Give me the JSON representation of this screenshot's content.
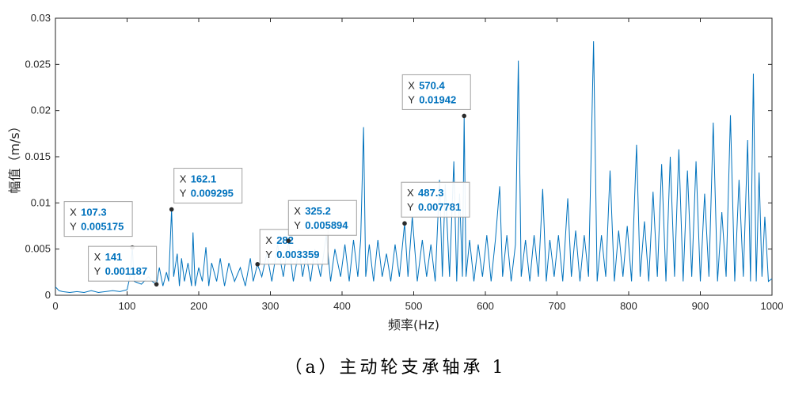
{
  "caption": "（a）主动轮支承轴承 1",
  "chart_data": {
    "type": "line",
    "xlabel": "频率(Hz)",
    "ylabel": "幅值（m/s）",
    "xlim": [
      0,
      1000
    ],
    "ylim": [
      0,
      0.03
    ],
    "xticks": [
      0,
      100,
      200,
      300,
      400,
      500,
      600,
      700,
      800,
      900,
      1000
    ],
    "yticks": [
      0,
      0.005,
      0.01,
      0.015,
      0.02,
      0.025,
      0.03
    ],
    "ytick_labels": [
      "0",
      "0.005",
      "0.01",
      "0.015",
      "0.02",
      "0.025",
      "0.03"
    ],
    "grid": false,
    "line_color": "#0072bd",
    "series": [
      {
        "x": [
          0,
          5,
          10,
          20,
          30,
          40,
          50,
          60,
          70,
          80,
          90,
          100,
          104,
          107.3,
          110,
          120,
          130,
          135,
          141,
          145,
          150,
          155,
          158,
          162.1,
          165,
          170,
          173,
          176,
          180,
          185,
          190,
          192,
          195,
          200,
          205,
          210,
          214,
          218,
          225,
          230,
          236,
          242,
          250,
          258,
          265,
          272,
          276,
          282,
          288,
          295,
          302,
          310,
          318,
          325.2,
          332,
          340,
          345,
          350,
          356,
          362,
          370,
          378,
          384,
          390,
          398,
          404,
          410,
          416,
          422,
          426,
          430,
          433,
          438,
          444,
          450,
          456,
          462,
          468,
          474,
          480,
          487.3,
          492,
          498,
          505,
          512,
          518,
          524,
          530,
          536,
          540,
          544,
          550,
          556,
          560,
          564,
          568,
          570.4,
          573,
          578,
          584,
          590,
          596,
          602,
          608,
          614,
          620,
          624,
          630,
          636,
          642,
          646,
          650,
          656,
          662,
          668,
          674,
          680,
          685,
          690,
          696,
          702,
          708,
          715,
          720,
          726,
          732,
          738,
          744,
          751,
          756,
          762,
          768,
          774,
          780,
          786,
          792,
          798,
          804,
          811,
          816,
          822,
          828,
          834,
          840,
          846,
          852,
          858,
          864,
          870,
          876,
          882,
          888,
          894,
          900,
          906,
          912,
          918,
          924,
          930,
          936,
          942,
          948,
          954,
          960,
          966,
          970,
          974,
          978,
          982,
          986,
          990,
          995,
          1000
        ],
        "y": [
          0.0009,
          0.0005,
          0.0004,
          0.0003,
          0.0004,
          0.0003,
          0.0005,
          0.0003,
          0.0004,
          0.0005,
          0.0004,
          0.0006,
          0.002,
          0.005175,
          0.0015,
          0.0012,
          0.002,
          0.0015,
          0.001187,
          0.003,
          0.001,
          0.0025,
          0.0015,
          0.009295,
          0.002,
          0.0045,
          0.001,
          0.004,
          0.0015,
          0.0035,
          0.001,
          0.0068,
          0.001,
          0.003,
          0.0015,
          0.0052,
          0.001,
          0.0035,
          0.0015,
          0.004,
          0.001,
          0.0035,
          0.0015,
          0.003,
          0.001,
          0.004,
          0.0015,
          0.003359,
          0.002,
          0.0045,
          0.0015,
          0.0055,
          0.002,
          0.005894,
          0.0015,
          0.005,
          0.002,
          0.0045,
          0.0015,
          0.005,
          0.002,
          0.0065,
          0.0015,
          0.005,
          0.002,
          0.0055,
          0.0015,
          0.006,
          0.002,
          0.006,
          0.0182,
          0.002,
          0.0055,
          0.0015,
          0.006,
          0.002,
          0.0045,
          0.0015,
          0.0055,
          0.002,
          0.007781,
          0.002,
          0.0085,
          0.0015,
          0.006,
          0.002,
          0.0055,
          0.0015,
          0.0125,
          0.002,
          0.012,
          0.002,
          0.0145,
          0.0015,
          0.011,
          0.002,
          0.01942,
          0.002,
          0.006,
          0.0015,
          0.0055,
          0.002,
          0.0065,
          0.0015,
          0.006,
          0.0118,
          0.002,
          0.0065,
          0.0015,
          0.0055,
          0.0254,
          0.002,
          0.006,
          0.0015,
          0.0065,
          0.002,
          0.0115,
          0.0015,
          0.006,
          0.002,
          0.0065,
          0.0015,
          0.0105,
          0.002,
          0.007,
          0.0015,
          0.0065,
          0.002,
          0.0275,
          0.0015,
          0.0065,
          0.002,
          0.0135,
          0.0015,
          0.007,
          0.002,
          0.0075,
          0.0015,
          0.0163,
          0.002,
          0.008,
          0.0015,
          0.0112,
          0.002,
          0.0142,
          0.0015,
          0.015,
          0.002,
          0.0158,
          0.0015,
          0.0135,
          0.002,
          0.0145,
          0.0015,
          0.011,
          0.002,
          0.0187,
          0.0015,
          0.009,
          0.002,
          0.0195,
          0.0015,
          0.0125,
          0.002,
          0.0168,
          0.0015,
          0.024,
          0.0015,
          0.0133,
          0.002,
          0.0085,
          0.0015,
          0.0018
        ]
      }
    ],
    "datatips": [
      {
        "x": 107.3,
        "y": 0.005175,
        "x_label": "107.3",
        "y_label": "0.005175"
      },
      {
        "x": 141,
        "y": 0.001187,
        "x_label": "141",
        "y_label": "0.001187"
      },
      {
        "x": 162.1,
        "y": 0.009295,
        "x_label": "162.1",
        "y_label": "0.009295"
      },
      {
        "x": 282,
        "y": 0.003359,
        "x_label": "282",
        "y_label": "0.003359"
      },
      {
        "x": 325.2,
        "y": 0.005894,
        "x_label": "325.2",
        "y_label": "0.005894"
      },
      {
        "x": 487.3,
        "y": 0.007781,
        "x_label": "487.3",
        "y_label": "0.007781"
      },
      {
        "x": 570.4,
        "y": 0.01942,
        "x_label": "570.4",
        "y_label": "0.01942"
      }
    ],
    "datatip_keys": {
      "x": "X",
      "y": "Y"
    }
  }
}
